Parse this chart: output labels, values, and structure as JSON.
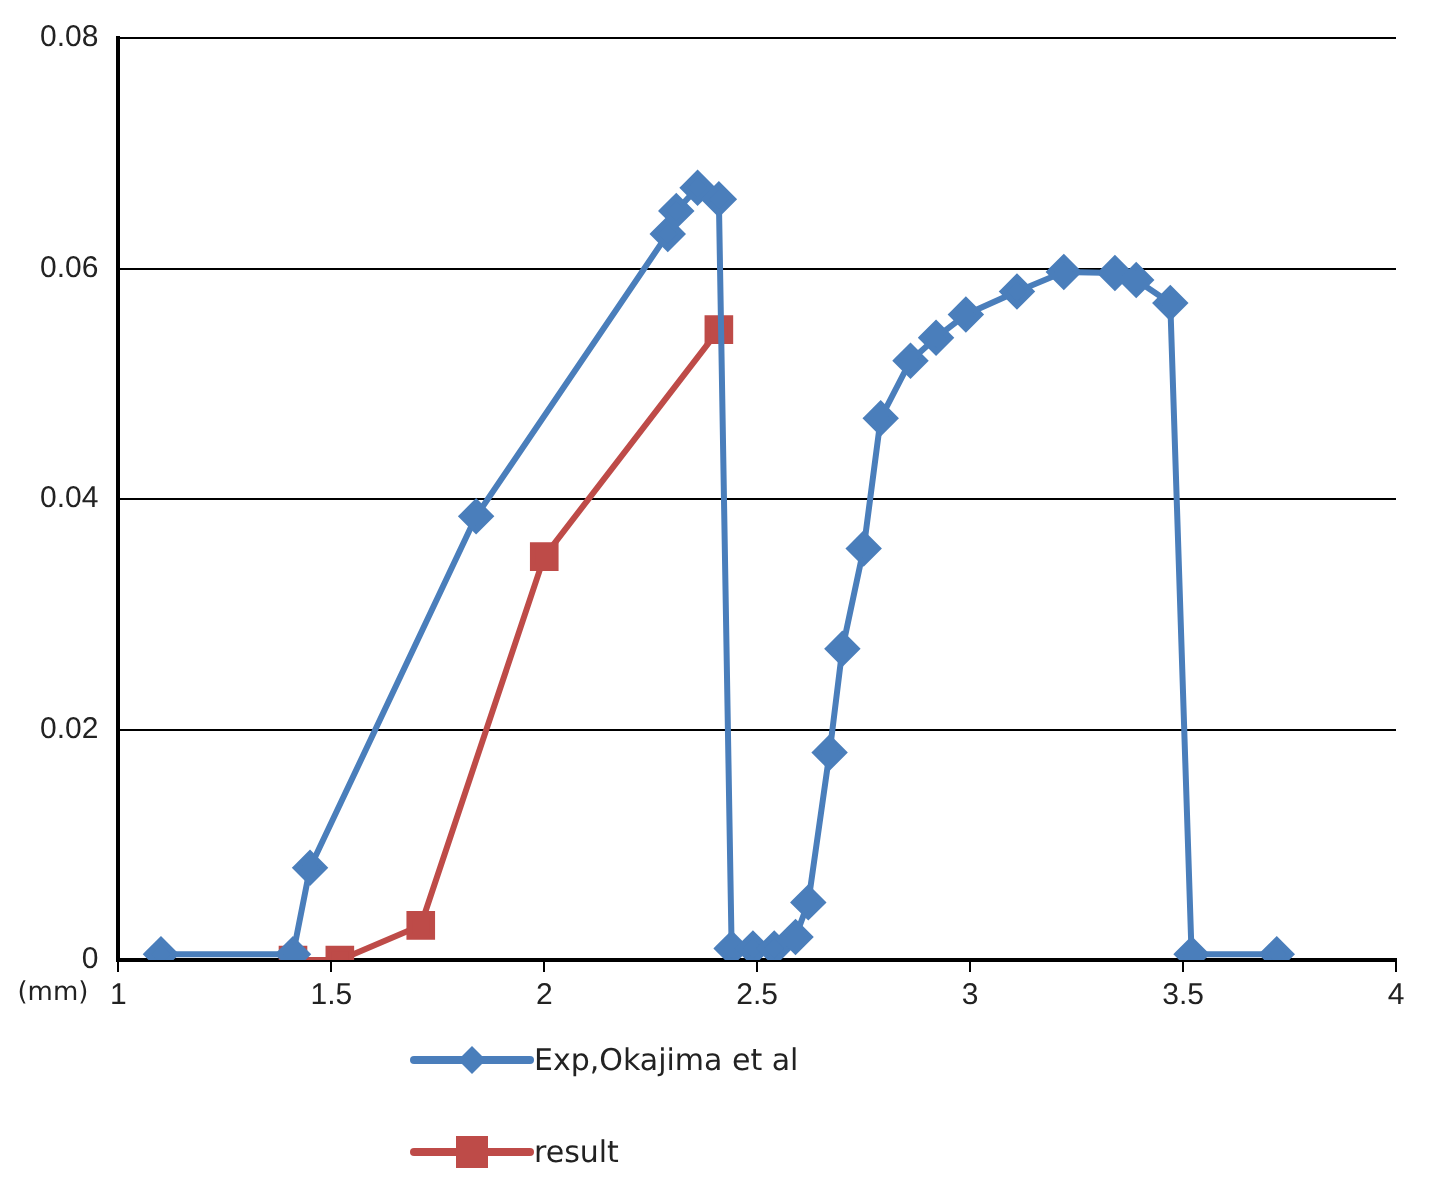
{
  "chart_data": {
    "type": "line",
    "xlabel": "(mm)",
    "xlim": [
      1,
      4
    ],
    "xticks": [
      1,
      1.5,
      2,
      2.5,
      3,
      3.5,
      4
    ],
    "ylim": [
      0,
      0.08
    ],
    "yticks": [
      0,
      0.02,
      0.04,
      0.06,
      0.08
    ],
    "grid": "y",
    "legend": "bottom",
    "line_style": "solid",
    "series": [
      {
        "name": "Exp,Okajima et al",
        "color": "#4a7ebb",
        "marker": "diamond",
        "x": [
          1.1,
          1.41,
          1.45,
          1.84,
          2.29,
          2.31,
          2.36,
          2.41,
          2.44,
          2.49,
          2.54,
          2.59,
          2.62,
          2.67,
          2.7,
          2.75,
          2.79,
          2.86,
          2.92,
          2.99,
          3.11,
          3.22,
          3.34,
          3.39,
          3.47,
          3.52,
          3.72
        ],
        "values": [
          0.0005,
          0.0005,
          0.008,
          0.0385,
          0.063,
          0.065,
          0.067,
          0.066,
          0.001,
          0.001,
          0.001,
          0.002,
          0.005,
          0.018,
          0.027,
          0.0357,
          0.047,
          0.052,
          0.054,
          0.056,
          0.058,
          0.0597,
          0.0596,
          0.059,
          0.057,
          0.0005,
          0.0005
        ]
      },
      {
        "name": "result",
        "color": "#be4b48",
        "marker": "square",
        "x": [
          1.41,
          1.52,
          1.71,
          2.0,
          2.41
        ],
        "values": [
          0,
          0,
          0.003,
          0.035,
          0.0547
        ]
      }
    ]
  }
}
